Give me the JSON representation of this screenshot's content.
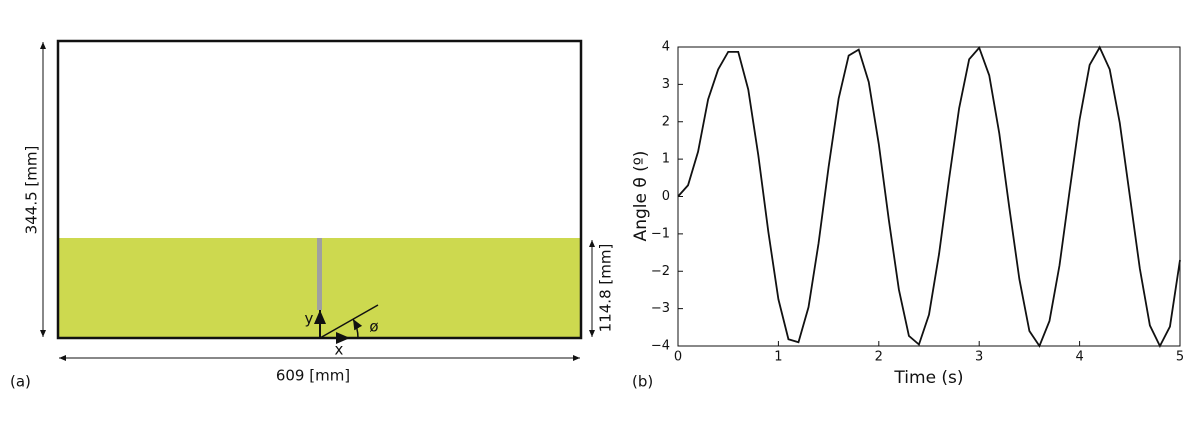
{
  "diagram": {
    "panel_label": "(a)",
    "height_label": "344.5 [mm]",
    "depth_label": "114.8 [mm]",
    "width_label": "609 [mm]",
    "y_label": "y",
    "x_label": "x",
    "angle_label": "ø"
  },
  "chart_data": {
    "type": "line",
    "panel_label": "(b)",
    "xlabel": "Time (s)",
    "ylabel": "Angle θ (º)",
    "x": [
      0,
      0.1,
      0.2,
      0.3,
      0.4,
      0.5,
      0.6,
      0.7,
      0.8,
      0.9,
      1.0,
      1.1,
      1.2,
      1.3,
      1.4,
      1.5,
      1.6,
      1.7,
      1.8,
      1.9,
      2.0,
      2.1,
      2.2,
      2.3,
      2.4,
      2.5,
      2.6,
      2.7,
      2.8,
      2.9,
      3.0,
      3.1,
      3.2,
      3.3,
      3.4,
      3.5,
      3.6,
      3.7,
      3.8,
      3.9,
      4.0,
      4.1,
      4.2,
      4.3,
      4.4,
      4.5,
      4.6,
      4.7,
      4.8,
      4.9,
      5.0
    ],
    "series": [
      {
        "name": "θ",
        "color": "#111111",
        "values": [
          0,
          0.3,
          1.2,
          2.6,
          3.4,
          3.87,
          3.87,
          2.86,
          1.1,
          -0.95,
          -2.75,
          -3.82,
          -3.9,
          -2.96,
          -1.25,
          0.79,
          2.62,
          3.77,
          3.93,
          3.06,
          1.4,
          -0.63,
          -2.49,
          -3.73,
          -3.96,
          -3.16,
          -1.54,
          0.47,
          2.36,
          3.67,
          3.98,
          3.24,
          1.69,
          -0.3,
          -2.21,
          -3.6,
          -4.0,
          -3.33,
          -1.84,
          0.14,
          2.06,
          3.52,
          3.99,
          3.4,
          1.97,
          0.02,
          -1.93,
          -3.45,
          -4.0,
          -3.48,
          -1.7
        ]
      }
    ],
    "xlim": [
      0,
      5
    ],
    "xticks": [
      0,
      1,
      2,
      3,
      4,
      5
    ],
    "ylim": [
      -4,
      4
    ],
    "yticks": [
      {
        "value": -4,
        "label": "−4"
      },
      {
        "value": -3,
        "label": "−3"
      },
      {
        "value": -2,
        "label": "−2"
      },
      {
        "value": -1,
        "label": "−1"
      },
      0,
      1,
      2,
      3,
      4
    ]
  }
}
